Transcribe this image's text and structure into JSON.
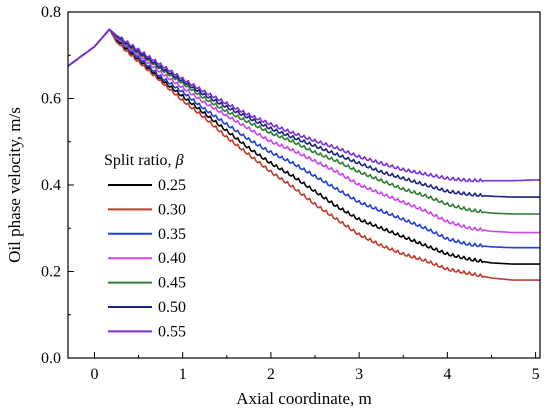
{
  "chart_data": {
    "type": "line",
    "xlabel": "Axial coordinate, m",
    "ylabel": "Oil phase velocity, m/s",
    "xlim": [
      -0.3,
      5.05
    ],
    "ylim": [
      0.0,
      0.8
    ],
    "xticks": [
      "0",
      "1",
      "2",
      "3",
      "4",
      "5"
    ],
    "yticks": [
      "0.0",
      "0.2",
      "0.4",
      "0.6",
      "0.8"
    ],
    "grid": false,
    "legend": {
      "title_text": "Split ratio, ",
      "title_symbol": "β",
      "placement": "left-center"
    },
    "x": [
      -0.3,
      0.0,
      0.17,
      0.25,
      0.5,
      0.75,
      1.0,
      1.25,
      1.5,
      1.75,
      2.0,
      2.25,
      2.5,
      2.75,
      3.0,
      3.25,
      3.5,
      3.75,
      4.0,
      4.25,
      4.5,
      4.75,
      5.05
    ],
    "series": [
      {
        "name": "0.25",
        "color": "#000000",
        "values": [
          0.675,
          0.72,
          0.76,
          0.735,
          0.69,
          0.645,
          0.605,
          0.565,
          0.525,
          0.485,
          0.45,
          0.42,
          0.385,
          0.35,
          0.32,
          0.3,
          0.28,
          0.26,
          0.24,
          0.228,
          0.22,
          0.217,
          0.217
        ]
      },
      {
        "name": "0.30",
        "color": "#c0392b",
        "values": [
          0.675,
          0.72,
          0.76,
          0.73,
          0.685,
          0.64,
          0.595,
          0.555,
          0.51,
          0.47,
          0.43,
          0.395,
          0.355,
          0.32,
          0.285,
          0.26,
          0.24,
          0.225,
          0.205,
          0.195,
          0.185,
          0.18,
          0.18
        ]
      },
      {
        "name": "0.35",
        "color": "#1f3fd6",
        "values": [
          0.675,
          0.72,
          0.76,
          0.738,
          0.695,
          0.65,
          0.615,
          0.575,
          0.54,
          0.505,
          0.475,
          0.45,
          0.42,
          0.39,
          0.36,
          0.34,
          0.32,
          0.3,
          0.275,
          0.262,
          0.257,
          0.255,
          0.255
        ]
      },
      {
        "name": "0.40",
        "color": "#cc44ee",
        "values": [
          0.675,
          0.72,
          0.76,
          0.74,
          0.7,
          0.66,
          0.625,
          0.59,
          0.56,
          0.53,
          0.5,
          0.48,
          0.455,
          0.43,
          0.4,
          0.38,
          0.36,
          0.34,
          0.315,
          0.3,
          0.293,
          0.29,
          0.29
        ]
      },
      {
        "name": "0.45",
        "color": "#2e7d32",
        "values": [
          0.675,
          0.72,
          0.76,
          0.742,
          0.705,
          0.668,
          0.635,
          0.6,
          0.57,
          0.545,
          0.52,
          0.5,
          0.475,
          0.455,
          0.43,
          0.41,
          0.39,
          0.375,
          0.355,
          0.342,
          0.335,
          0.333,
          0.333
        ]
      },
      {
        "name": "0.50",
        "color": "#1a237e",
        "values": [
          0.675,
          0.72,
          0.76,
          0.744,
          0.708,
          0.672,
          0.64,
          0.608,
          0.58,
          0.555,
          0.53,
          0.51,
          0.49,
          0.47,
          0.45,
          0.43,
          0.415,
          0.4,
          0.385,
          0.378,
          0.374,
          0.372,
          0.372
        ]
      },
      {
        "name": "0.55",
        "color": "#7b2fd6",
        "values": [
          0.675,
          0.72,
          0.76,
          0.746,
          0.712,
          0.678,
          0.645,
          0.615,
          0.588,
          0.562,
          0.54,
          0.52,
          0.502,
          0.485,
          0.465,
          0.45,
          0.435,
          0.425,
          0.415,
          0.41,
          0.41,
          0.41,
          0.412
        ]
      }
    ]
  }
}
